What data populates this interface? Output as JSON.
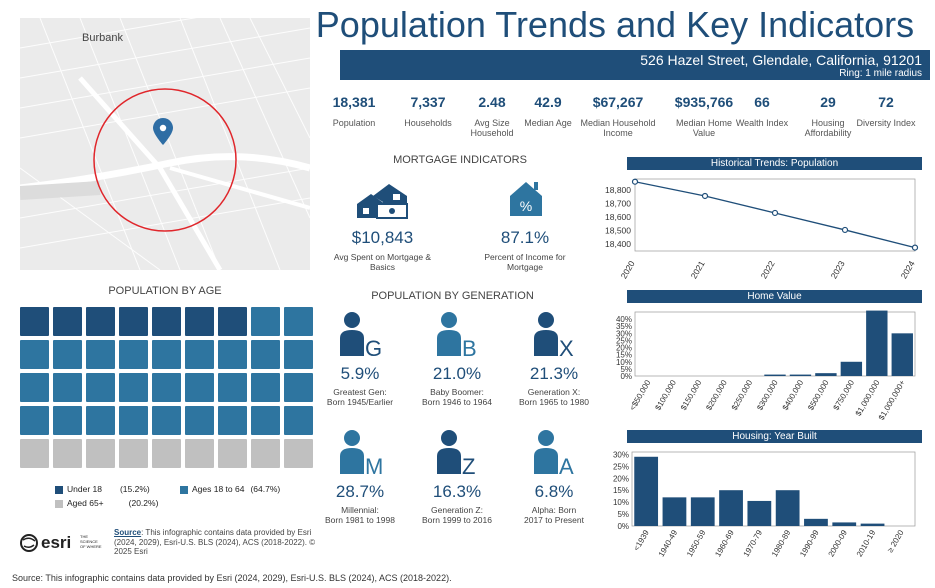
{
  "title": "Population Trends and Key Indicators",
  "address": "526 Hazel Street, Glendale, California, 91201",
  "ring": "Ring: 1 mile radius",
  "map": {
    "label": "Burbank"
  },
  "kpis": [
    {
      "value": "18,381",
      "label": "Population"
    },
    {
      "value": "7,337",
      "label": "Households"
    },
    {
      "value": "2.48",
      "label": "Avg Size Household"
    },
    {
      "value": "42.9",
      "label": "Median Age"
    },
    {
      "value": "$67,267",
      "label": "Median Household Income"
    },
    {
      "value": "$935,766",
      "label": "Median Home Value"
    },
    {
      "value": "66",
      "label": "Wealth Index"
    },
    {
      "value": "29",
      "label": "Housing Affordability"
    },
    {
      "value": "72",
      "label": "Diversity Index"
    }
  ],
  "mortgage": {
    "heading": "MORTGAGE INDICATORS",
    "spent_value": "$10,843",
    "spent_label": "Avg Spent on Mortgage & Basics",
    "pct_value": "87.1%",
    "pct_label": "Percent of Income for Mortgage"
  },
  "age": {
    "heading": "POPULATION BY AGE",
    "legend": [
      {
        "name": "Under 18",
        "pct": "(15.2%)",
        "color": "#1f4e79"
      },
      {
        "name": "Ages 18 to 64",
        "pct": "(64.7%)",
        "color": "#2e75a0"
      },
      {
        "name": "Aged 65+",
        "pct": "(20.2%)",
        "color": "#c0c0c0"
      }
    ]
  },
  "generation": {
    "heading": "POPULATION BY GENERATION",
    "items": [
      {
        "letter": "G",
        "pct": "5.9%",
        "label1": "Greatest Gen:",
        "label2": "Born 1945/Earlier",
        "color": "#1f4e79"
      },
      {
        "letter": "B",
        "pct": "21.0%",
        "label1": "Baby Boomer:",
        "label2": "Born 1946 to 1964",
        "color": "#2e75a0"
      },
      {
        "letter": "X",
        "pct": "21.3%",
        "label1": "Generation X:",
        "label2": "Born 1965 to 1980",
        "color": "#1f4e79"
      },
      {
        "letter": "M",
        "pct": "28.7%",
        "label1": "Millennial:",
        "label2": "Born 1981 to 1998",
        "color": "#2e75a0"
      },
      {
        "letter": "Z",
        "pct": "16.3%",
        "label1": "Generation Z:",
        "label2": "Born 1999 to 2016",
        "color": "#1f4e79"
      },
      {
        "letter": "A",
        "pct": "6.8%",
        "label1": "Alpha:  Born",
        "label2": "2017 to Present",
        "color": "#2e75a0"
      }
    ]
  },
  "source_small": {
    "label": "Source",
    "text": ": This infographic contains data provided by Esri (2024, 2029), Esri-U.S. BLS (2024), ACS (2018-2022). © 2025 Esri"
  },
  "logo": {
    "name": "esri",
    "tagline": "THE SCIENCE OF WHERE"
  },
  "footer": "Source: This infographic contains data provided by Esri (2024, 2029), Esri-U.S. BLS (2024), ACS (2018-2022).",
  "chart_data": [
    {
      "type": "line",
      "title": "Historical Trends: Population",
      "x": [
        "2020",
        "2021",
        "2022",
        "2023",
        "2024"
      ],
      "values": [
        18860,
        18755,
        18630,
        18505,
        18375
      ],
      "yticks": [
        "18,400",
        "18,500",
        "18,600",
        "18,700",
        "18,800"
      ],
      "ylim": [
        18350,
        18880
      ]
    },
    {
      "type": "bar",
      "title": "Home Value",
      "categories": [
        "<$50,000",
        "$100,000",
        "$150,000",
        "$200,000",
        "$250,000",
        "$300,000",
        "$400,000",
        "$500,000",
        "$750,000",
        "$1,000,000",
        "$1,000,000+"
      ],
      "values": [
        0,
        0,
        0,
        0,
        0,
        1,
        1,
        2,
        10,
        46,
        30
      ],
      "yticks": [
        "0%",
        "5%",
        "10%",
        "15%",
        "20%",
        "25%",
        "30%",
        "35%",
        "40%"
      ],
      "ylim": [
        0,
        45
      ]
    },
    {
      "type": "bar",
      "title": "Housing: Year Built",
      "categories": [
        "<1939",
        "1940-49",
        "1950-59",
        "1960-69",
        "1970-79",
        "1980-89",
        "1990-99",
        "2000-09",
        "2010-19",
        "≥ 2020"
      ],
      "values": [
        29,
        12,
        12,
        15,
        10.5,
        15,
        3,
        1.5,
        1,
        0
      ],
      "yticks": [
        "0%",
        "5%",
        "10%",
        "15%",
        "20%",
        "25%",
        "30%"
      ],
      "ylim": [
        0,
        31
      ]
    }
  ]
}
